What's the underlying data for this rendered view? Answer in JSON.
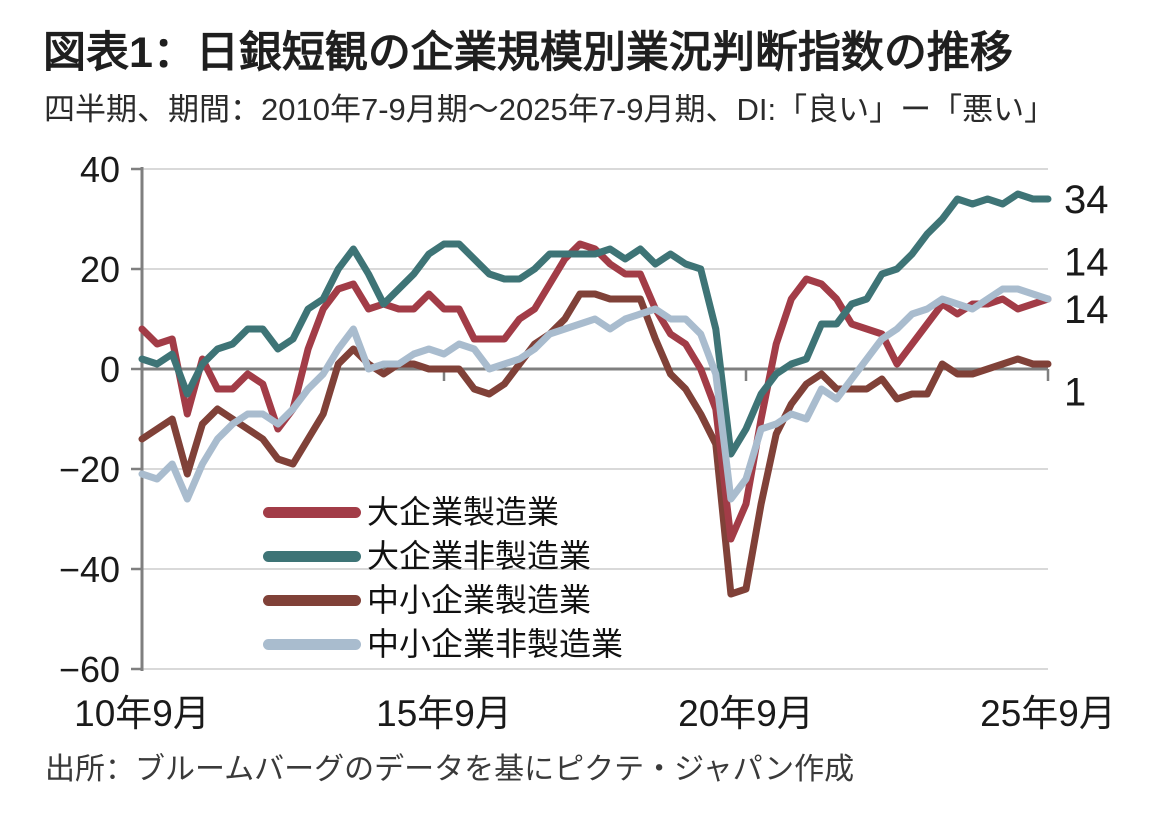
{
  "header": {
    "title": "図表1：日銀短観の企業規模別業況判断指数の推移",
    "subtitle": "四半期、期間：2010年7-9月期～2025年7-9月期、DI:「良い」ー「悪い」"
  },
  "source": "出所：ブルームバーグのデータを基にピクテ・ジャパン作成",
  "chart_data": {
    "type": "line",
    "frequency": "四半期",
    "x_start": "2010年7-9月期",
    "x_end": "2025年7-9月期",
    "x_count": 61,
    "ylim": [
      -60,
      40
    ],
    "grid": "horizontal",
    "legend_position": "inside-lower-left",
    "colors": {
      "grid": "#d9d9d9",
      "axis": "#7f7f7f",
      "tick_text": "#1a1a1a"
    },
    "y_ticks": [
      {
        "value": 40,
        "label": "40"
      },
      {
        "value": 20,
        "label": "20"
      },
      {
        "value": 0,
        "label": "0"
      },
      {
        "value": -20,
        "label": "−20"
      },
      {
        "value": -40,
        "label": "−40"
      },
      {
        "value": -60,
        "label": "−60"
      }
    ],
    "x_ticks": [
      {
        "index": 0,
        "label": "10年9月"
      },
      {
        "index": 20,
        "label": "15年9月"
      },
      {
        "index": 40,
        "label": "20年9月"
      },
      {
        "index": 60,
        "label": "25年9月"
      }
    ],
    "series": [
      {
        "name": "大企業製造業",
        "color": "#a23c47",
        "z": 2,
        "values": [
          8,
          5,
          6,
          -9,
          2,
          -4,
          -4,
          -1,
          -3,
          -12,
          -8,
          4,
          12,
          16,
          17,
          12,
          13,
          12,
          12,
          15,
          12,
          12,
          6,
          6,
          6,
          10,
          12,
          17,
          22,
          25,
          24,
          21,
          19,
          19,
          12,
          7,
          5,
          0,
          -8,
          -34,
          -27,
          -10,
          5,
          14,
          18,
          17,
          14,
          9,
          8,
          7,
          1,
          5,
          9,
          13,
          11,
          13,
          13,
          14,
          12,
          13,
          14
        ]
      },
      {
        "name": "大企業非製造業",
        "color": "#3e7476",
        "z": 3,
        "values": [
          2,
          1,
          3,
          -5,
          1,
          4,
          5,
          8,
          8,
          4,
          6,
          12,
          14,
          20,
          24,
          19,
          13,
          16,
          19,
          23,
          25,
          25,
          22,
          19,
          18,
          18,
          20,
          23,
          23,
          23,
          23,
          24,
          22,
          24,
          21,
          23,
          21,
          20,
          8,
          -17,
          -12,
          -5,
          -1,
          1,
          2,
          9,
          9,
          13,
          14,
          19,
          20,
          23,
          27,
          30,
          34,
          33,
          34,
          33,
          35,
          34,
          34
        ]
      },
      {
        "name": "中小企業製造業",
        "color": "#804138",
        "z": 1,
        "values": [
          -14,
          -12,
          -10,
          -21,
          -11,
          -8,
          -10,
          -12,
          -14,
          -18,
          -19,
          -14,
          -9,
          1,
          4,
          1,
          -1,
          1,
          1,
          0,
          0,
          0,
          -4,
          -5,
          -3,
          1,
          5,
          7,
          10,
          15,
          15,
          14,
          14,
          14,
          6,
          -1,
          -4,
          -9,
          -15,
          -45,
          -44,
          -27,
          -13,
          -7,
          -3,
          -1,
          -4,
          -4,
          -4,
          -2,
          -6,
          -5,
          -5,
          1,
          -1,
          -1,
          0,
          1,
          2,
          1,
          1
        ]
      },
      {
        "name": "中小企業非製造業",
        "color": "#a9bcce",
        "z": 4,
        "values": [
          -21,
          -22,
          -19,
          -26,
          -19,
          -14,
          -11,
          -9,
          -9,
          -11,
          -8,
          -4,
          -1,
          4,
          8,
          0,
          1,
          1,
          3,
          4,
          3,
          5,
          4,
          0,
          1,
          2,
          4,
          7,
          8,
          9,
          10,
          8,
          10,
          11,
          12,
          10,
          10,
          7,
          -1,
          -26,
          -22,
          -12,
          -11,
          -9,
          -10,
          -4,
          -6,
          -2,
          2,
          6,
          8,
          11,
          12,
          14,
          13,
          12,
          14,
          16,
          16,
          15,
          14
        ]
      }
    ],
    "end_labels": [
      {
        "text": "34",
        "series": "大企業非製造業",
        "at": 34
      },
      {
        "text": "14",
        "series": "大企業製造業",
        "at": 21.5
      },
      {
        "text": "14",
        "series": "中小企業非製造業",
        "at": 12
      },
      {
        "text": "1",
        "series": "中小企業製造業",
        "at": -4.5
      }
    ]
  }
}
